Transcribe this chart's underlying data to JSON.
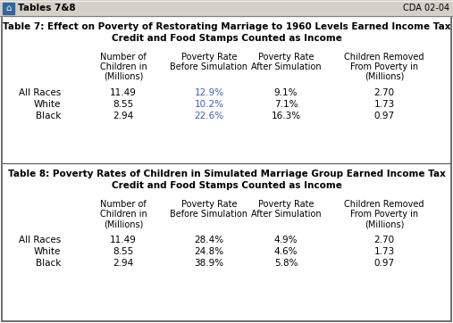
{
  "title_bar_text": "Tables 7&8",
  "title_bar_right": "CDA 02-04",
  "bg_color": "#ffffff",
  "blue_color": "#4060c0",
  "black_color": "#000000",
  "table7_title_line1": "Table 7: Effect on Poverty of Restorating Marriage to 1960 Levels Earned Income Tax",
  "table7_title_line2": "Credit and Food Stamps Counted as Income",
  "table8_title_line1": "Table 8: Poverty Rates of Children in Simulated Marriage Group Earned Income Tax",
  "table8_title_line2": "Credit and Food Stamps Counted as Income",
  "col_headers_line1": [
    "Number of",
    "Poverty Rate",
    "Poverty Rate",
    "Children Removed"
  ],
  "col_headers_line2": [
    "Children in",
    "Before Simulation",
    "After Simulation",
    "From Poverty in"
  ],
  "col_headers_line3": [
    "(Millions)",
    "",
    "",
    "(Millions)"
  ],
  "row_labels": [
    "All Races",
    "White",
    "Black"
  ],
  "table7_data": [
    [
      "11.49",
      "12.9%",
      "9.1%",
      "2.70"
    ],
    [
      "8.55",
      "10.2%",
      "7.1%",
      "1.73"
    ],
    [
      "2.94",
      "22.6%",
      "16.3%",
      "0.97"
    ]
  ],
  "table8_data": [
    [
      "11.49",
      "28.4%",
      "4.9%",
      "2.70"
    ],
    [
      "8.55",
      "24.8%",
      "4.6%",
      "1.73"
    ],
    [
      "2.94",
      "38.9%",
      "5.8%",
      "0.97"
    ]
  ]
}
